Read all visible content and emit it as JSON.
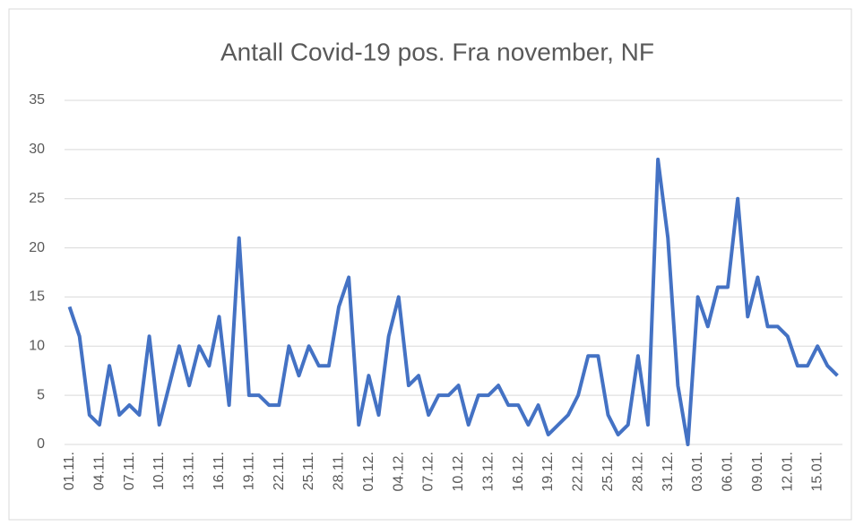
{
  "chart_data": {
    "type": "line",
    "title": "Antall Covid-19 pos. Fra november, NF",
    "categories": [
      "01.11.",
      null,
      null,
      "04.11.",
      null,
      null,
      "07.11.",
      null,
      null,
      "10.11.",
      null,
      null,
      "13.11.",
      null,
      null,
      "16.11.",
      null,
      null,
      "19.11.",
      null,
      null,
      "22.11.",
      null,
      null,
      "25.11.",
      null,
      null,
      "28.11.",
      null,
      null,
      "01.12.",
      null,
      null,
      "04.12.",
      null,
      null,
      "07.12.",
      null,
      null,
      "10.12.",
      null,
      null,
      "13.12.",
      null,
      null,
      "16.12.",
      null,
      null,
      "19.12.",
      null,
      null,
      "22.12.",
      null,
      null,
      "25.12.",
      null,
      null,
      "28.12.",
      null,
      null,
      "31.12.",
      null,
      null,
      "03.01.",
      null,
      null,
      "06.01.",
      null,
      null,
      "09.01.",
      null,
      null,
      "12.01.",
      null,
      null,
      "15.01.",
      null,
      null
    ],
    "series": [
      {
        "name": "Antall",
        "color": "#4472c4",
        "values": [
          14,
          11,
          3,
          2,
          8,
          3,
          4,
          3,
          11,
          2,
          6,
          10,
          6,
          10,
          8,
          13,
          4,
          21,
          5,
          5,
          4,
          4,
          10,
          7,
          10,
          8,
          8,
          14,
          17,
          2,
          7,
          3,
          11,
          15,
          6,
          7,
          3,
          5,
          5,
          6,
          2,
          5,
          5,
          6,
          4,
          4,
          2,
          4,
          1,
          2,
          3,
          5,
          9,
          9,
          3,
          1,
          2,
          9,
          2,
          29,
          21,
          6,
          0,
          15,
          12,
          16,
          16,
          25,
          13,
          17,
          12,
          12,
          11,
          8,
          8,
          10,
          8,
          7
        ]
      }
    ],
    "ylim": [
      0,
      35
    ],
    "yticks": [
      0,
      5,
      10,
      15,
      20,
      25,
      30,
      35
    ],
    "grid": true
  }
}
